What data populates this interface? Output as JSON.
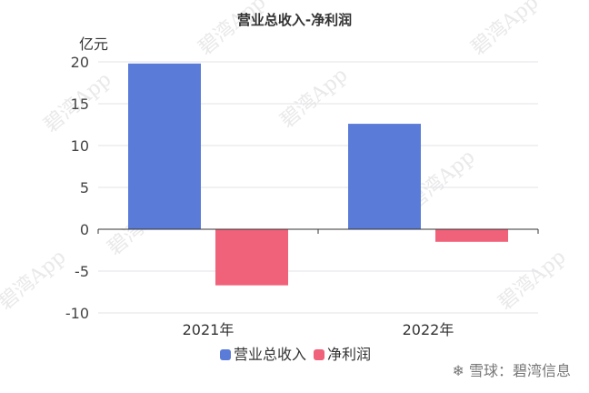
{
  "chart_data": {
    "type": "bar",
    "title": "营业总收入-净利润",
    "unit_label": "亿元",
    "categories": [
      "2021年",
      "2022年"
    ],
    "series": [
      {
        "name": "营业总收入",
        "color": "#5b7bd9",
        "values": [
          19.8,
          12.6
        ]
      },
      {
        "name": "净利润",
        "color": "#f0617a",
        "values": [
          -6.7,
          -1.5
        ]
      }
    ],
    "ylim": [
      -10,
      20
    ],
    "yticks": [
      20,
      15,
      10,
      5,
      0,
      -5,
      -10
    ],
    "grid": true,
    "legend_position": "bottom-center"
  },
  "watermark": "碧湾App",
  "brand": {
    "icon": "snowball-logo-icon",
    "text": "雪球：碧湾信息"
  }
}
